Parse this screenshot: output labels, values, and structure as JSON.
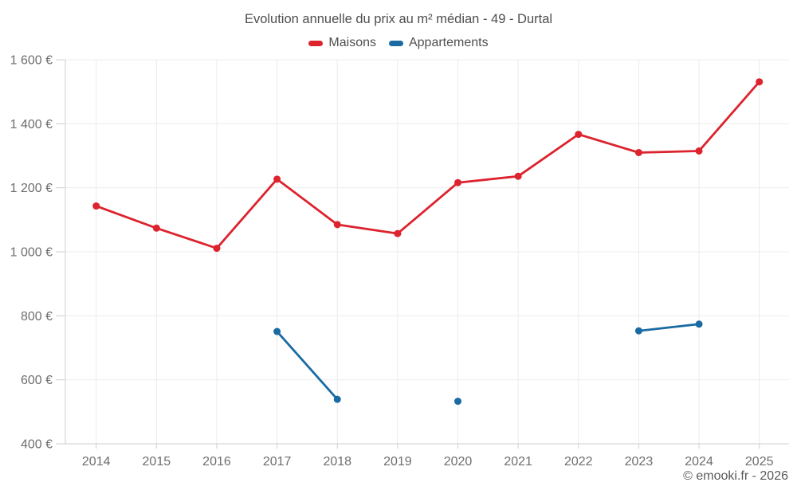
{
  "chart_data": {
    "type": "line",
    "title": "Evolution annuelle du prix au m² médian - 49 - Durtal",
    "xlabel": "",
    "ylabel": "",
    "categories": [
      "2014",
      "2015",
      "2016",
      "2017",
      "2018",
      "2019",
      "2020",
      "2021",
      "2022",
      "2023",
      "2024",
      "2025"
    ],
    "series": [
      {
        "name": "Maisons",
        "color": "#dc232e",
        "values": [
          1143,
          1074,
          1011,
          1227,
          1085,
          1057,
          1216,
          1236,
          1367,
          1310,
          1315,
          1531
        ]
      },
      {
        "name": "Appartements",
        "color": "#1a6ba3",
        "values": [
          null,
          null,
          null,
          751,
          539,
          null,
          533,
          null,
          null,
          753,
          774,
          null
        ]
      }
    ],
    "ylim": [
      400,
      1600
    ],
    "yticks": [
      {
        "value": 400,
        "label": "400 €"
      },
      {
        "value": 600,
        "label": "600 €"
      },
      {
        "value": 800,
        "label": "800 €"
      },
      {
        "value": 1000,
        "label": "1 000 €"
      },
      {
        "value": 1200,
        "label": "1 200 €"
      },
      {
        "value": 1400,
        "label": "1 400 €"
      },
      {
        "value": 1600,
        "label": "1 600 €"
      }
    ],
    "grid": true,
    "legend_position": "top",
    "currency_suffix": "€"
  },
  "footer": {
    "credit": "© emooki.fr - 2026"
  }
}
